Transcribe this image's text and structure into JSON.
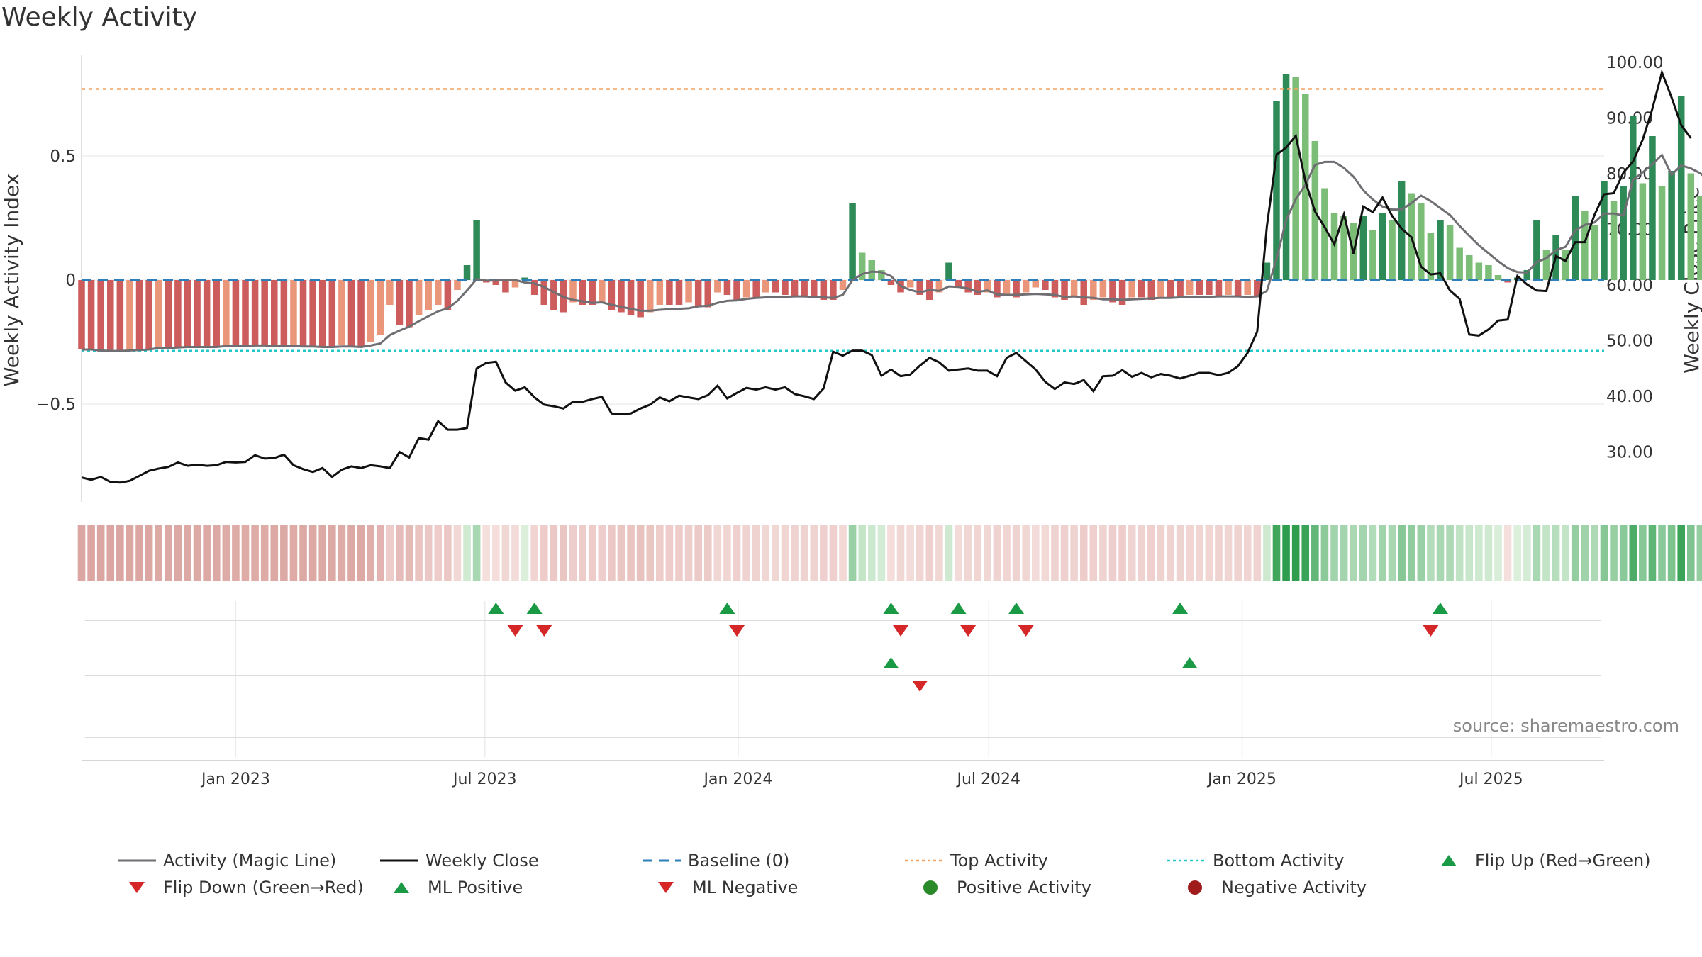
{
  "title": "Weekly Activity",
  "source": "source: sharemaestro.com",
  "colors": {
    "magic_line": "#6e6e73",
    "weekly_close": "#111111",
    "baseline": "#2c7fb8",
    "top_activity": "#f4a460",
    "bottom_activity": "#22c7c7",
    "pos_dark": "#2e8b57",
    "pos_light": "#7cbd78",
    "neg_dark": "#cd5c5c",
    "neg_light": "#e9967a",
    "marker_up": "#1a9a45",
    "marker_down": "#d62728",
    "dot_pos": "#2a8a2a",
    "dot_neg": "#a01c1c"
  },
  "chart_data": {
    "type": "bar",
    "title": "Weekly Activity",
    "ylabel": "Weekly Activity Index",
    "y2label": "Weekly Close Price",
    "ylim": [
      -0.9,
      0.9
    ],
    "y_ticks": [
      0.5,
      0,
      -0.5
    ],
    "y_tick_labels": [
      "0.5",
      "0",
      "−0.5"
    ],
    "y2lim": [
      21,
      102
    ],
    "y2_ticks": [
      100,
      90,
      80,
      70,
      60,
      50,
      40,
      30
    ],
    "y2_tick_labels": [
      "100.00",
      "90.00",
      "80.00",
      "70.00",
      "60.00",
      "50.00",
      "40.00",
      "30.00"
    ],
    "x_range": [
      "2022-09-11",
      "2025-09-21"
    ],
    "x_ticks": [
      "2023-01-01",
      "2023-07-01",
      "2024-01-01",
      "2024-07-01",
      "2025-01-01",
      "2025-07-01"
    ],
    "x_tick_labels": [
      "Jan 2023",
      "Jul 2023",
      "Jan 2024",
      "Jul 2024",
      "Jan 2025",
      "Jul 2025"
    ],
    "start_date": "2022-09-11",
    "top_activity": 0.77,
    "bottom_activity": -0.285,
    "baseline": 0,
    "activity_index": [
      -0.28,
      -0.28,
      -0.29,
      -0.29,
      -0.29,
      -0.28,
      -0.28,
      -0.28,
      -0.27,
      -0.27,
      -0.27,
      -0.27,
      -0.27,
      -0.27,
      -0.27,
      -0.26,
      -0.26,
      -0.26,
      -0.26,
      -0.26,
      -0.27,
      -0.27,
      -0.26,
      -0.27,
      -0.27,
      -0.27,
      -0.27,
      -0.26,
      -0.27,
      -0.27,
      -0.25,
      -0.22,
      -0.1,
      -0.18,
      -0.19,
      -0.14,
      -0.12,
      -0.1,
      -0.12,
      -0.04,
      0.06,
      0.24,
      -0.01,
      -0.02,
      -0.05,
      -0.03,
      0.01,
      -0.06,
      -0.1,
      -0.12,
      -0.13,
      -0.09,
      -0.1,
      -0.1,
      -0.09,
      -0.12,
      -0.13,
      -0.14,
      -0.15,
      -0.13,
      -0.1,
      -0.1,
      -0.1,
      -0.09,
      -0.11,
      -0.11,
      -0.05,
      -0.06,
      -0.08,
      -0.07,
      -0.07,
      -0.05,
      -0.05,
      -0.06,
      -0.07,
      -0.07,
      -0.07,
      -0.08,
      -0.08,
      -0.04,
      0.31,
      0.11,
      0.08,
      0.04,
      -0.02,
      -0.05,
      -0.03,
      -0.06,
      -0.08,
      -0.05,
      0.07,
      -0.03,
      -0.05,
      -0.06,
      -0.05,
      -0.07,
      -0.06,
      -0.07,
      -0.05,
      -0.03,
      -0.04,
      -0.07,
      -0.08,
      -0.07,
      -0.1,
      -0.08,
      -0.07,
      -0.09,
      -0.1,
      -0.07,
      -0.07,
      -0.08,
      -0.07,
      -0.07,
      -0.07,
      -0.06,
      -0.06,
      -0.06,
      -0.07,
      -0.06,
      -0.07,
      -0.06,
      -0.07,
      0.07,
      0.72,
      0.83,
      0.82,
      0.75,
      0.56,
      0.37,
      0.27,
      0.26,
      0.23,
      0.26,
      0.2,
      0.27,
      0.24,
      0.4,
      0.35,
      0.31,
      0.19,
      0.24,
      0.22,
      0.13,
      0.1,
      0.07,
      0.06,
      0.02,
      -0.01,
      0.01,
      0.04,
      0.24,
      0.12,
      0.18,
      0.12,
      0.34,
      0.28,
      0.22,
      0.4,
      0.32,
      0.38,
      0.66,
      0.39,
      0.58,
      0.38,
      0.44,
      0.74,
      0.43,
      0.34,
      0.32
    ],
    "magic_line": [
      -0.28,
      -0.28,
      -0.284,
      -0.286,
      -0.286,
      -0.284,
      -0.282,
      -0.28,
      -0.274,
      -0.274,
      -0.272,
      -0.27,
      -0.27,
      -0.27,
      -0.27,
      -0.266,
      -0.266,
      -0.266,
      -0.264,
      -0.264,
      -0.266,
      -0.266,
      -0.266,
      -0.268,
      -0.268,
      -0.27,
      -0.27,
      -0.268,
      -0.268,
      -0.27,
      -0.264,
      -0.256,
      -0.222,
      -0.204,
      -0.188,
      -0.166,
      -0.146,
      -0.126,
      -0.114,
      -0.084,
      -0.042,
      0.004,
      -0.002,
      -0.002,
      -0.0,
      -0.0,
      -0.01,
      -0.014,
      -0.028,
      -0.048,
      -0.068,
      -0.08,
      -0.086,
      -0.092,
      -0.09,
      -0.1,
      -0.108,
      -0.116,
      -0.124,
      -0.124,
      -0.12,
      -0.118,
      -0.116,
      -0.114,
      -0.106,
      -0.104,
      -0.092,
      -0.084,
      -0.082,
      -0.076,
      -0.072,
      -0.07,
      -0.068,
      -0.068,
      -0.066,
      -0.066,
      -0.068,
      -0.07,
      -0.072,
      -0.06,
      0.0,
      0.024,
      0.034,
      0.032,
      0.016,
      -0.024,
      -0.04,
      -0.05,
      -0.04,
      -0.044,
      -0.026,
      -0.028,
      -0.034,
      -0.048,
      -0.042,
      -0.058,
      -0.06,
      -0.06,
      -0.058,
      -0.056,
      -0.058,
      -0.06,
      -0.068,
      -0.066,
      -0.07,
      -0.072,
      -0.078,
      -0.078,
      -0.08,
      -0.078,
      -0.076,
      -0.074,
      -0.072,
      -0.072,
      -0.07,
      -0.068,
      -0.068,
      -0.068,
      -0.066,
      -0.066,
      -0.066,
      -0.068,
      -0.066,
      -0.044,
      0.084,
      0.242,
      0.326,
      0.384,
      0.464,
      0.476,
      0.476,
      0.452,
      0.416,
      0.362,
      0.324,
      0.296,
      0.284,
      0.284,
      0.31,
      0.34,
      0.318,
      0.29,
      0.262,
      0.218,
      0.178,
      0.14,
      0.108,
      0.076,
      0.048,
      0.032,
      0.03,
      0.072,
      0.088,
      0.12,
      0.134,
      0.2,
      0.222,
      0.232,
      0.268,
      0.268,
      0.26,
      0.404,
      0.434,
      0.466,
      0.504,
      0.424,
      0.462,
      0.45,
      0.43,
      0.394
    ],
    "weekly_close": [
      25.4,
      25.0,
      25.5,
      24.6,
      24.5,
      24.8,
      25.7,
      26.6,
      27.0,
      27.3,
      28.1,
      27.5,
      27.7,
      27.5,
      27.6,
      28.2,
      28.1,
      28.2,
      29.4,
      28.8,
      28.9,
      29.5,
      27.6,
      26.9,
      26.4,
      27.1,
      25.5,
      26.8,
      27.4,
      27.1,
      27.6,
      27.4,
      27.1,
      30.0,
      29.0,
      32.5,
      32.2,
      35.5,
      34.0,
      34.0,
      34.3,
      45.0,
      46.0,
      46.2,
      42.5,
      41.0,
      41.6,
      39.8,
      38.5,
      38.2,
      37.8,
      39.0,
      39.0,
      39.5,
      39.9,
      36.9,
      36.8,
      36.9,
      37.8,
      38.5,
      39.8,
      39.1,
      40.1,
      39.8,
      39.5,
      40.2,
      41.9,
      39.6,
      40.6,
      41.5,
      41.2,
      41.6,
      41.2,
      41.6,
      40.4,
      40.0,
      39.5,
      41.4,
      48.0,
      47.3,
      48.2,
      48.2,
      47.4,
      43.7,
      44.8,
      43.6,
      43.9,
      45.5,
      46.9,
      46.1,
      44.6,
      44.8,
      45.0,
      44.6,
      44.6,
      43.6,
      46.9,
      47.8,
      46.3,
      44.8,
      42.6,
      41.3,
      42.5,
      42.2,
      42.9,
      40.9,
      43.6,
      43.7,
      44.7,
      43.5,
      44.2,
      43.4,
      44.0,
      43.7,
      43.2,
      43.7,
      44.2,
      44.2,
      43.8,
      44.2,
      45.4,
      47.8,
      51.6,
      70.5,
      83.4,
      84.7,
      86.8,
      78.6,
      73.2,
      70.4,
      67.3,
      72.7,
      65.6,
      74.1,
      73.1,
      75.7,
      72.4,
      70.1,
      68.6,
      63.3,
      61.9,
      62.1,
      59.0,
      57.5,
      51.1,
      50.9,
      52.0,
      53.6,
      53.8,
      61.6,
      60.1,
      59.0,
      58.9,
      65.2,
      64.3,
      67.7,
      67.7,
      72.6,
      76.3,
      76.5,
      80.2,
      82.2,
      86.1,
      91.6,
      98.2,
      93.7,
      88.7,
      86.4
    ],
    "markers_row1_up": [
      "2023-07-09",
      "2023-08-06",
      "2023-12-24",
      "2024-04-21",
      "2024-06-09",
      "2024-07-21",
      "2024-11-17",
      "2025-05-25"
    ],
    "markers_row1_down": [
      "2023-07-23",
      "2023-08-13",
      "2023-12-31",
      "2024-04-28",
      "2024-06-16",
      "2024-07-28",
      "2025-05-18"
    ],
    "markers_row2_up": [
      "2024-04-21",
      "2024-11-24"
    ],
    "markers_row2_down": [
      "2024-05-12"
    ],
    "legend": [
      {
        "label": "Activity (Magic Line)",
        "kind": "line",
        "color": "#6e6e73"
      },
      {
        "label": "Weekly Close",
        "kind": "line",
        "color": "#111111"
      },
      {
        "label": "Baseline (0)",
        "kind": "dash",
        "color": "#2c7fb8"
      },
      {
        "label": "Top Activity",
        "kind": "dot-line",
        "color": "#f4a460"
      },
      {
        "label": "Bottom Activity",
        "kind": "dot-line",
        "color": "#22c7c7"
      },
      {
        "label": "Flip Up (Red→Green)",
        "kind": "tri-up",
        "color": "#1a9a45"
      },
      {
        "label": "Flip Down (Green→Red)",
        "kind": "tri-down",
        "color": "#d62728"
      },
      {
        "label": "ML Positive",
        "kind": "tri-up",
        "color": "#1a9a45"
      },
      {
        "label": "ML Negative",
        "kind": "tri-down",
        "color": "#d62728"
      },
      {
        "label": "Positive Activity",
        "kind": "circle",
        "color": "#2a8a2a"
      },
      {
        "label": "Negative Activity",
        "kind": "circle",
        "color": "#a01c1c"
      }
    ]
  }
}
